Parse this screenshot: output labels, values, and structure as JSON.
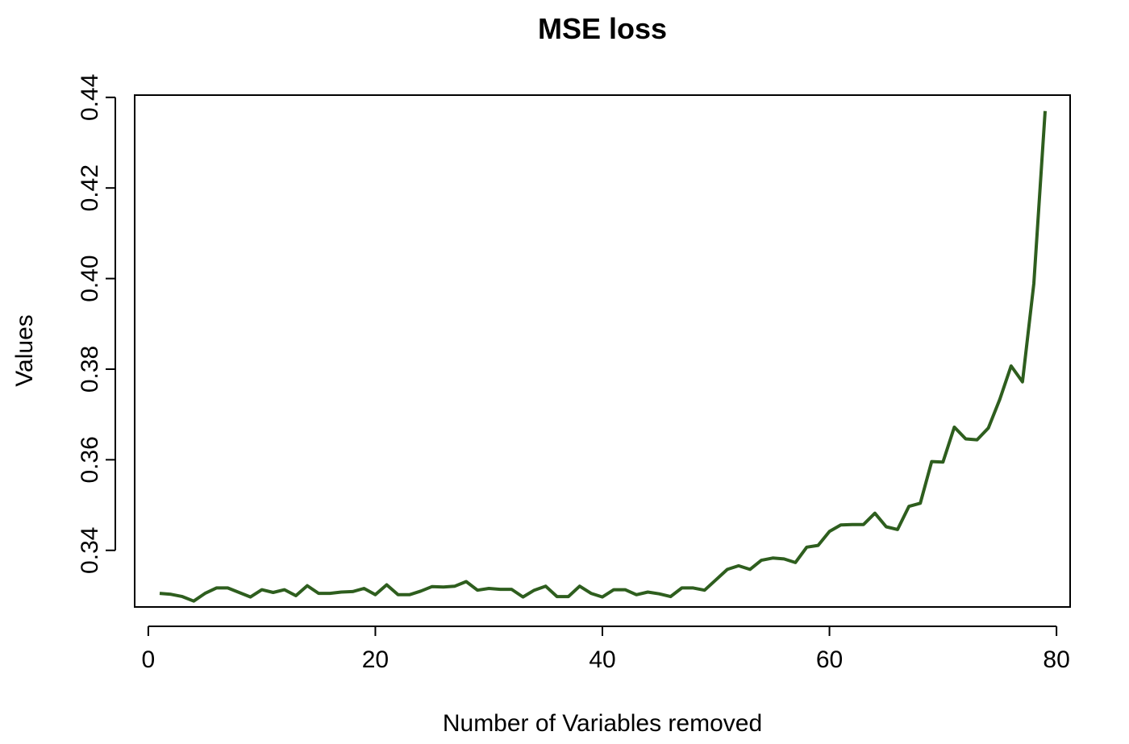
{
  "chart_data": {
    "type": "line",
    "title": "MSE loss",
    "xlabel": "Number of Variables removed",
    "ylabel": "Values",
    "xlim": [
      -1.2,
      81.2
    ],
    "ylim": [
      0.3275,
      0.4405
    ],
    "x_ticks": [
      0,
      20,
      40,
      60,
      80
    ],
    "y_ticks": [
      0.34,
      0.36,
      0.38,
      0.4,
      0.42,
      0.44
    ],
    "x_tick_labels": [
      "0",
      "20",
      "40",
      "60",
      "80"
    ],
    "y_tick_labels": [
      "0.34",
      "0.36",
      "0.38",
      "0.40",
      "0.42",
      "0.44"
    ],
    "grid": false,
    "line_color": "#2e5e1e",
    "series": [
      {
        "x": [
          1,
          2,
          3,
          4,
          5,
          6,
          7,
          8,
          9,
          10,
          11,
          12,
          13,
          14,
          15,
          16,
          17,
          18,
          19,
          20,
          21,
          22,
          23,
          24,
          25,
          26,
          27,
          28,
          29,
          30,
          31,
          32,
          33,
          34,
          35,
          36,
          37,
          38,
          39,
          40,
          41,
          42,
          43,
          44,
          45,
          46,
          47,
          48,
          49,
          50,
          51,
          52,
          53,
          54,
          55,
          56,
          57,
          58,
          59,
          60,
          61,
          62,
          63,
          64,
          65,
          66,
          67,
          68,
          69,
          70,
          71,
          72,
          73,
          74,
          75,
          76,
          77,
          78,
          79
        ],
        "values": [
          0.3305,
          0.3303,
          0.3298,
          0.3288,
          0.3305,
          0.3317,
          0.3317,
          0.3307,
          0.3297,
          0.3313,
          0.3307,
          0.3313,
          0.33,
          0.3322,
          0.3305,
          0.3305,
          0.3308,
          0.3309,
          0.3316,
          0.3302,
          0.3324,
          0.3302,
          0.3302,
          0.331,
          0.332,
          0.3319,
          0.3321,
          0.3331,
          0.3312,
          0.3316,
          0.3314,
          0.3314,
          0.3297,
          0.3312,
          0.3321,
          0.3298,
          0.3298,
          0.3321,
          0.3305,
          0.3297,
          0.3313,
          0.3313,
          0.3302,
          0.3308,
          0.3304,
          0.3298,
          0.3317,
          0.3317,
          0.3312,
          0.3335,
          0.3358,
          0.3366,
          0.3358,
          0.3378,
          0.3383,
          0.3381,
          0.3373,
          0.3407,
          0.3411,
          0.3442,
          0.3456,
          0.3457,
          0.3457,
          0.3482,
          0.3452,
          0.3446,
          0.3497,
          0.3504,
          0.3596,
          0.3595,
          0.3672,
          0.3646,
          0.3644,
          0.367,
          0.3733,
          0.3807,
          0.3772,
          0.3989,
          0.437
        ]
      }
    ]
  }
}
